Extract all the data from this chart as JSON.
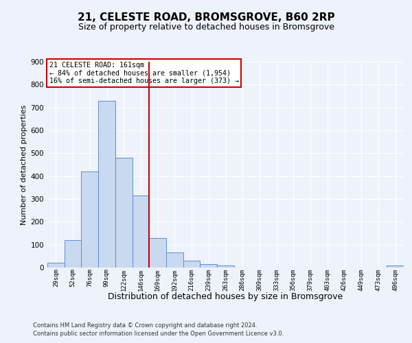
{
  "title": "21, CELESTE ROAD, BROMSGROVE, B60 2RP",
  "subtitle": "Size of property relative to detached houses in Bromsgrove",
  "xlabel": "Distribution of detached houses by size in Bromsgrove",
  "ylabel": "Number of detached properties",
  "bar_labels": [
    "29sqm",
    "52sqm",
    "76sqm",
    "99sqm",
    "122sqm",
    "146sqm",
    "169sqm",
    "192sqm",
    "216sqm",
    "239sqm",
    "263sqm",
    "286sqm",
    "309sqm",
    "333sqm",
    "356sqm",
    "379sqm",
    "403sqm",
    "426sqm",
    "449sqm",
    "473sqm",
    "496sqm"
  ],
  "bar_values": [
    20,
    120,
    420,
    730,
    480,
    315,
    130,
    65,
    30,
    15,
    10,
    0,
    0,
    0,
    0,
    0,
    0,
    0,
    0,
    0,
    10
  ],
  "bar_color": "#c9d9f0",
  "bar_edge_color": "#5b8fcc",
  "ylim": [
    0,
    900
  ],
  "yticks": [
    0,
    100,
    200,
    300,
    400,
    500,
    600,
    700,
    800,
    900
  ],
  "property_line_bin": 6,
  "vline_color": "#cc0000",
  "annotation_text": "21 CELESTE ROAD: 161sqm\n← 84% of detached houses are smaller (1,954)\n16% of semi-detached houses are larger (373) →",
  "annotation_box_color": "#cc0000",
  "footer1": "Contains HM Land Registry data © Crown copyright and database right 2024.",
  "footer2": "Contains public sector information licensed under the Open Government Licence v3.0.",
  "background_color": "#eef2fb",
  "plot_bg_color": "#eef2fb",
  "grid_color": "#ffffff",
  "title_fontsize": 11,
  "subtitle_fontsize": 9,
  "xlabel_fontsize": 9,
  "ylabel_fontsize": 8
}
